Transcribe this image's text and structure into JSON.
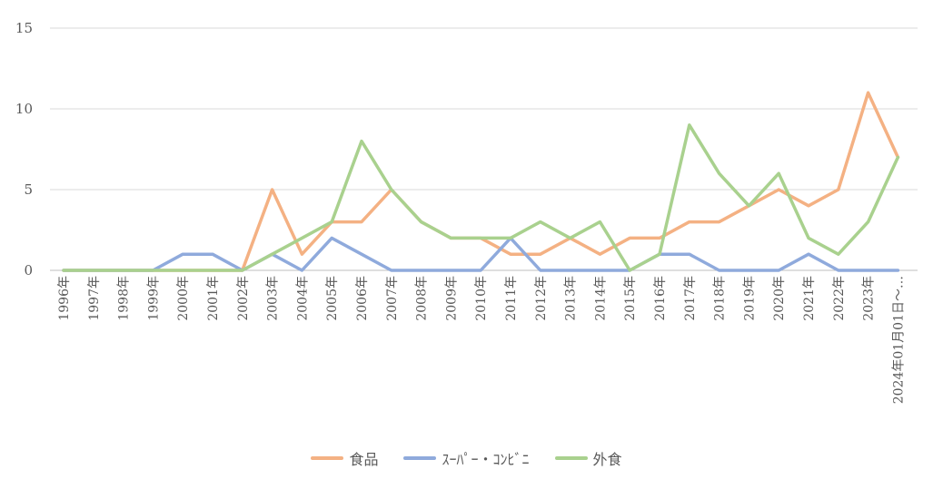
{
  "chart_data": {
    "type": "line",
    "categories": [
      "1996年",
      "1997年",
      "1998年",
      "1999年",
      "2000年",
      "2001年",
      "2002年",
      "2003年",
      "2004年",
      "2005年",
      "2006年",
      "2007年",
      "2008年",
      "2009年",
      "2010年",
      "2011年",
      "2012年",
      "2013年",
      "2014年",
      "2015年",
      "2016年",
      "2017年",
      "2018年",
      "2019年",
      "2020年",
      "2021年",
      "2022年",
      "2023年",
      "2024年01月01日〜…"
    ],
    "series": [
      {
        "name": "食品",
        "color": "#F4B183",
        "values": [
          0,
          0,
          0,
          0,
          0,
          0,
          0,
          5,
          1,
          3,
          3,
          5,
          3,
          2,
          2,
          1,
          1,
          2,
          1,
          2,
          2,
          3,
          3,
          4,
          5,
          4,
          5,
          11,
          7
        ]
      },
      {
        "name": "ｽｰﾊﾟｰ・ｺﾝﾋﾞﾆ",
        "color": "#8FAADC",
        "values": [
          0,
          0,
          0,
          0,
          1,
          1,
          0,
          1,
          0,
          2,
          1,
          0,
          0,
          0,
          0,
          2,
          0,
          0,
          0,
          0,
          1,
          1,
          0,
          0,
          0,
          1,
          0,
          0,
          0
        ]
      },
      {
        "name": "外食",
        "color": "#A9D18E",
        "values": [
          0,
          0,
          0,
          0,
          0,
          0,
          0,
          1,
          2,
          3,
          8,
          5,
          3,
          2,
          2,
          2,
          3,
          2,
          3,
          0,
          1,
          9,
          6,
          4,
          6,
          2,
          1,
          3,
          7
        ]
      }
    ],
    "yticks": [
      0,
      5,
      10,
      15
    ],
    "ylim": [
      0,
      15
    ],
    "grid": true,
    "legend_position": "bottom"
  }
}
